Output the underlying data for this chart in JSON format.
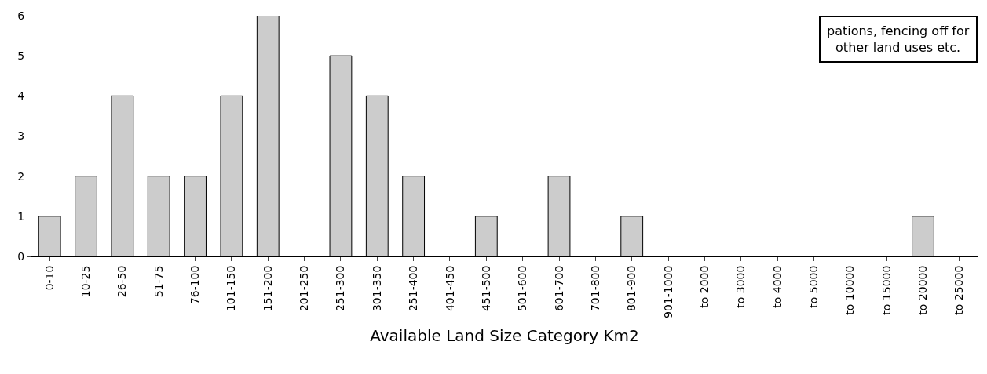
{
  "chart_data": {
    "type": "bar",
    "xlabel": "Available Land Size Category Km2",
    "categories": [
      "0-10",
      "10-25",
      "26-50",
      "51-75",
      "76-100",
      "101-150",
      "151-200",
      "201-250",
      "251-300",
      "301-350",
      "251-400",
      "401-450",
      "451-500",
      "501-600",
      "601-700",
      "701-800",
      "801-900",
      "901-1000",
      "to 2000",
      "to 3000",
      "to 4000",
      "to 5000",
      "to 10000",
      "to 15000",
      "to 20000",
      "to 25000"
    ],
    "values": [
      1,
      2,
      4,
      2,
      2,
      4,
      6,
      0,
      5,
      4,
      2,
      0,
      1,
      0,
      2,
      0,
      1,
      0,
      0,
      0,
      0,
      0,
      0,
      0,
      1,
      0
    ],
    "color": "#cccccc",
    "ylim": [
      0,
      6
    ],
    "yticks": [
      0,
      1,
      2,
      3,
      4,
      5,
      6
    ],
    "grid": "y",
    "annotations": [
      "pations, fencing off for\nother land uses etc."
    ]
  }
}
